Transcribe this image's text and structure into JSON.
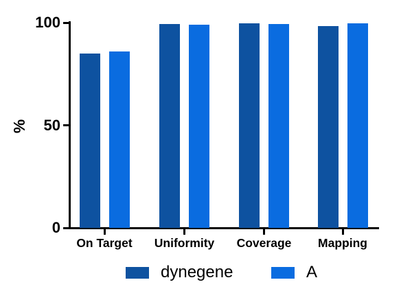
{
  "chart_data": {
    "type": "bar",
    "title": "",
    "ylabel": "%",
    "xlabel": "",
    "categories": [
      "On Target",
      "Uniformity",
      "Coverage",
      "Mapping"
    ],
    "series": [
      {
        "name": "dynegene",
        "color": "#0e52a0",
        "values": [
          85,
          99.4,
          99.8,
          98.2
        ]
      },
      {
        "name": "A",
        "color": "#0a6ce0",
        "values": [
          86,
          99.1,
          99.4,
          99.6
        ]
      }
    ],
    "ylim": [
      0,
      100
    ],
    "yticks": [
      0,
      50,
      100
    ],
    "grid": false,
    "legend_position": "bottom",
    "axis_color": "#000000",
    "text_color": "#000000",
    "background_color": "#ffffff"
  }
}
